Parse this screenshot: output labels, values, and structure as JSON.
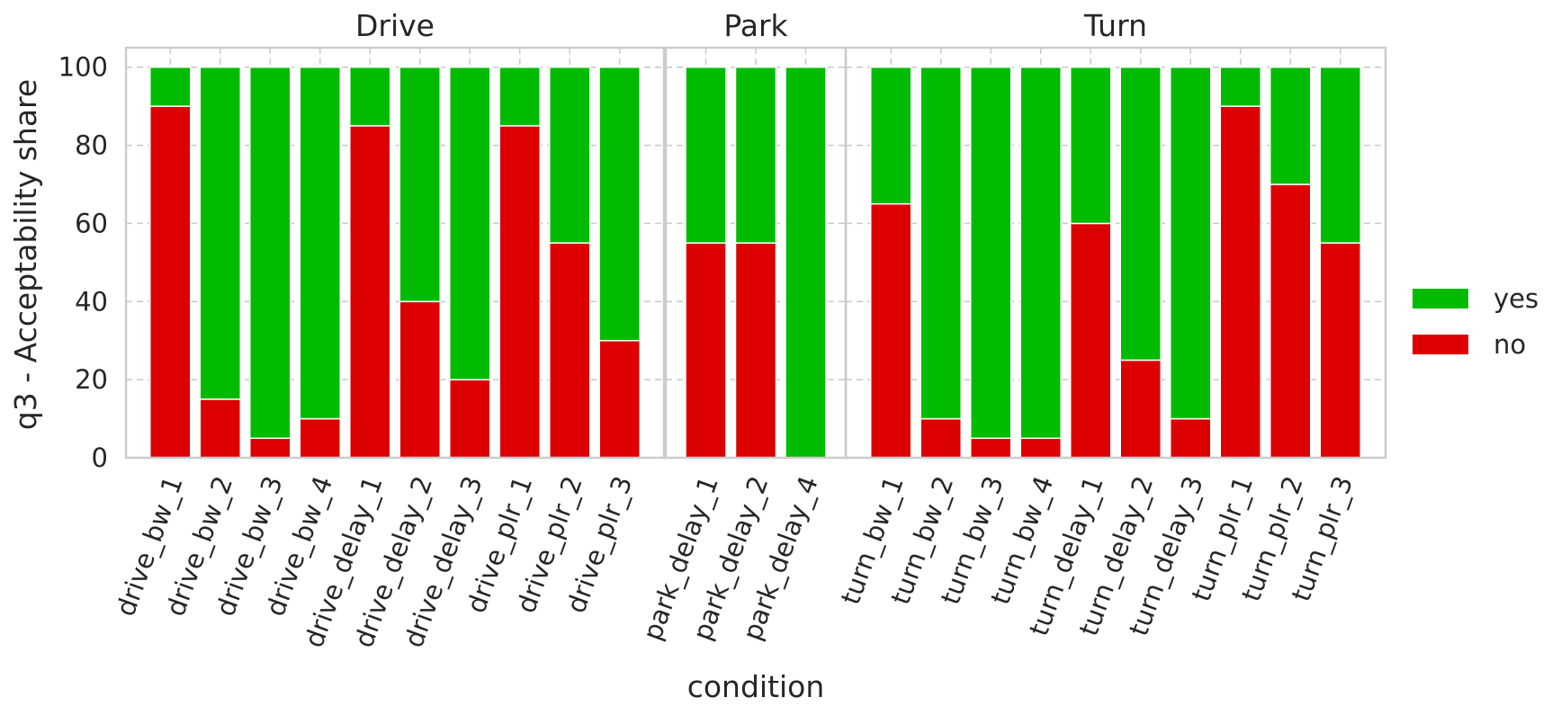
{
  "chart_data": {
    "type": "bar",
    "stacked": true,
    "ylabel": "q3 - Acceptability share",
    "xlabel": "condition",
    "ylim": [
      0,
      105
    ],
    "yticks": [
      0,
      20,
      40,
      60,
      80,
      100
    ],
    "grid": true,
    "legend_position": "right",
    "series_meta": [
      {
        "name": "no",
        "color": "#dd0000"
      },
      {
        "name": "yes",
        "color": "#00bb00"
      }
    ],
    "legend": [
      {
        "label": "yes",
        "color": "#00bb00"
      },
      {
        "label": "no",
        "color": "#dd0000"
      }
    ],
    "panels": [
      {
        "title": "Drive",
        "categories": [
          "drive_bw_1",
          "drive_bw_2",
          "drive_bw_3",
          "drive_bw_4",
          "drive_delay_1",
          "drive_delay_2",
          "drive_delay_3",
          "drive_plr_1",
          "drive_plr_2",
          "drive_plr_3"
        ],
        "series": [
          {
            "name": "no",
            "values": [
              90,
              15,
              5,
              10,
              85,
              40,
              20,
              85,
              55,
              30
            ]
          },
          {
            "name": "yes",
            "values": [
              10,
              85,
              95,
              90,
              15,
              60,
              80,
              15,
              45,
              70
            ]
          }
        ]
      },
      {
        "title": "Park",
        "categories": [
          "park_delay_1",
          "park_delay_2",
          "park_delay_4"
        ],
        "series": [
          {
            "name": "no",
            "values": [
              55,
              55,
              0
            ]
          },
          {
            "name": "yes",
            "values": [
              45,
              45,
              100
            ]
          }
        ]
      },
      {
        "title": "Turn",
        "categories": [
          "turn_bw_1",
          "turn_bw_2",
          "turn_bw_3",
          "turn_bw_4",
          "turn_delay_1",
          "turn_delay_2",
          "turn_delay_3",
          "turn_plr_1",
          "turn_plr_2",
          "turn_plr_3"
        ],
        "series": [
          {
            "name": "no",
            "values": [
              65,
              10,
              5,
              5,
              60,
              25,
              10,
              90,
              70,
              55
            ]
          },
          {
            "name": "yes",
            "values": [
              35,
              90,
              95,
              95,
              40,
              75,
              90,
              10,
              30,
              45
            ]
          }
        ]
      }
    ]
  }
}
